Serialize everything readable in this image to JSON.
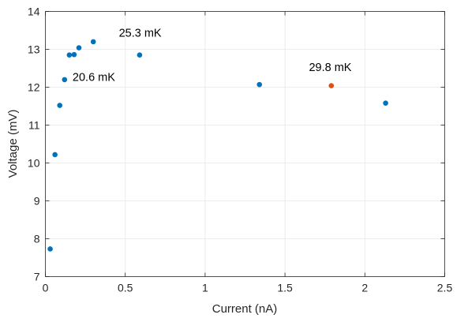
{
  "chart_data": {
    "type": "scatter",
    "xlabel": "Current (nA)",
    "ylabel": "Voltage (mV)",
    "xlim": [
      0,
      2.5
    ],
    "ylim": [
      7,
      14
    ],
    "xticks": [
      0,
      0.5,
      1,
      1.5,
      2,
      2.5
    ],
    "xtick_labels": [
      "0",
      "0.5",
      "1",
      "1.5",
      "2",
      "2.5"
    ],
    "yticks": [
      7,
      8,
      9,
      10,
      11,
      12,
      13,
      14
    ],
    "ytick_labels": [
      "7",
      "8",
      "9",
      "10",
      "11",
      "12",
      "13",
      "14"
    ],
    "grid": true,
    "series": [
      {
        "color": "#0072BD",
        "points": [
          {
            "x": 0.03,
            "y": 7.73
          },
          {
            "x": 0.06,
            "y": 10.22
          },
          {
            "x": 0.09,
            "y": 11.52
          },
          {
            "x": 0.12,
            "y": 12.2
          },
          {
            "x": 0.15,
            "y": 12.85
          },
          {
            "x": 0.18,
            "y": 12.86
          },
          {
            "x": 0.21,
            "y": 13.04
          },
          {
            "x": 0.3,
            "y": 13.2
          },
          {
            "x": 0.59,
            "y": 12.85
          },
          {
            "x": 1.34,
            "y": 12.07
          },
          {
            "x": 2.13,
            "y": 11.58
          }
        ]
      },
      {
        "color": "#D95319",
        "points": [
          {
            "x": 1.79,
            "y": 12.04
          }
        ]
      }
    ],
    "annotations": [
      {
        "text": "20.6 mK",
        "x": 0.17,
        "y": 12.17
      },
      {
        "text": "25.3 mK",
        "x": 0.46,
        "y": 13.33
      },
      {
        "text": "29.8 mK",
        "x": 1.65,
        "y": 12.43
      }
    ]
  }
}
